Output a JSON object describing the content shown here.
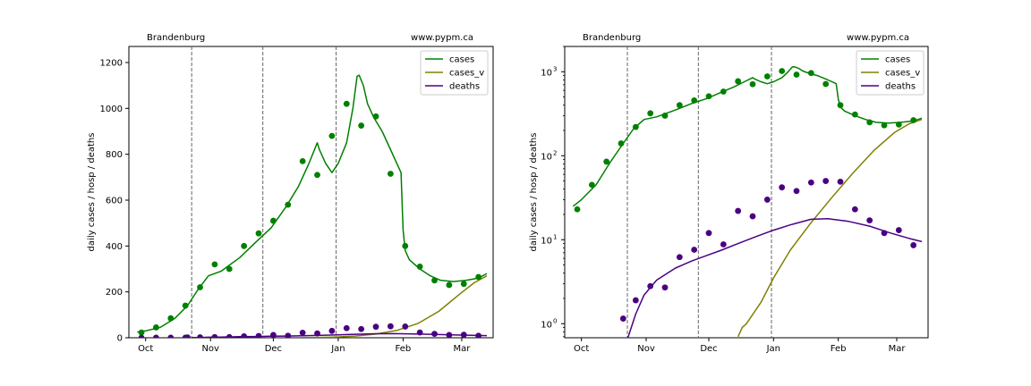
{
  "colors": {
    "cases": "#008000",
    "cases_v": "#808000",
    "deaths": "#4b0082",
    "markers_cases": "#008000",
    "markers_deaths": "#4b0082",
    "vlines": "#666666"
  },
  "chart_data": [
    {
      "type": "line",
      "title_left": "Brandenburg",
      "title_right": "www.pypm.ca",
      "ylabel": "daily cases / hosp / deaths",
      "yscale": "linear",
      "xlim": [
        -8,
        166
      ],
      "ylim": [
        0,
        1270
      ],
      "yticks": [
        0,
        200,
        400,
        600,
        800,
        1000,
        1200
      ],
      "xticks": [
        {
          "x": 0,
          "label": "Oct"
        },
        {
          "x": 31,
          "label": "Nov"
        },
        {
          "x": 61,
          "label": "Dec"
        },
        {
          "x": 92,
          "label": "Jan"
        },
        {
          "x": 123,
          "label": "Feb"
        },
        {
          "x": 151,
          "label": "Mar"
        }
      ],
      "vlines": [
        22,
        56,
        91
      ],
      "legend": "top-right",
      "legend_entries": [
        "cases",
        "cases_v",
        "deaths"
      ],
      "series": [
        {
          "name": "cases",
          "color_key": "cases",
          "points": [
            [
              -4,
              25
            ],
            [
              0,
              30
            ],
            [
              7,
              45
            ],
            [
              14,
              85
            ],
            [
              20,
              140
            ],
            [
              25,
              210
            ],
            [
              30,
              270
            ],
            [
              36,
              290
            ],
            [
              45,
              350
            ],
            [
              53,
              420
            ],
            [
              60,
              480
            ],
            [
              67,
              570
            ],
            [
              73,
              660
            ],
            [
              78,
              760
            ],
            [
              82,
              850
            ],
            [
              83,
              820
            ],
            [
              86,
              760
            ],
            [
              89,
              720
            ],
            [
              92,
              760
            ],
            [
              96,
              850
            ],
            [
              99,
              1000
            ],
            [
              101,
              1140
            ],
            [
              102,
              1145
            ],
            [
              104,
              1100
            ],
            [
              106,
              1020
            ],
            [
              109,
              960
            ],
            [
              113,
              900
            ],
            [
              117,
              820
            ],
            [
              120,
              760
            ],
            [
              122,
              720
            ],
            [
              123,
              470
            ],
            [
              124,
              380
            ],
            [
              126,
              340
            ],
            [
              131,
              300
            ],
            [
              136,
              270
            ],
            [
              141,
              250
            ],
            [
              147,
              245
            ],
            [
              153,
              250
            ],
            [
              159,
              260
            ],
            [
              163,
              280
            ]
          ]
        },
        {
          "name": "cases_v",
          "color_key": "cases_v",
          "points": [
            [
              75,
              0.7
            ],
            [
              77,
              0.9
            ],
            [
              79,
              1.0
            ],
            [
              86,
              1.8
            ],
            [
              92,
              3.5
            ],
            [
              100,
              7.5
            ],
            [
              110,
              16
            ],
            [
              120,
              32
            ],
            [
              130,
              62
            ],
            [
              140,
              115
            ],
            [
              150,
              190
            ],
            [
              157,
              240
            ],
            [
              163,
              270
            ]
          ]
        },
        {
          "name": "deaths",
          "color_key": "deaths",
          "points": [
            [
              22,
              0.65
            ],
            [
              26,
              1.3
            ],
            [
              30,
              2.2
            ],
            [
              36,
              3.3
            ],
            [
              45,
              4.6
            ],
            [
              53,
              5.6
            ],
            [
              60,
              6.5
            ],
            [
              67,
              7.5
            ],
            [
              75,
              9
            ],
            [
              84,
              11
            ],
            [
              92,
              13
            ],
            [
              100,
              15
            ],
            [
              110,
              17.5
            ],
            [
              118,
              17.8
            ],
            [
              128,
              16.5
            ],
            [
              138,
              14.5
            ],
            [
              148,
              12
            ],
            [
              158,
              10.2
            ],
            [
              163,
              9.5
            ]
          ]
        }
      ],
      "scatter_cases": [
        [
          -2,
          23
        ],
        [
          5,
          45
        ],
        [
          12,
          85
        ],
        [
          19,
          140
        ],
        [
          26,
          220
        ],
        [
          33,
          320
        ],
        [
          40,
          300
        ],
        [
          47,
          400
        ],
        [
          54,
          455
        ],
        [
          61,
          510
        ],
        [
          68,
          580
        ],
        [
          75,
          770
        ],
        [
          82,
          710
        ],
        [
          89,
          880
        ],
        [
          96,
          1020
        ],
        [
          103,
          925
        ],
        [
          110,
          965
        ],
        [
          117,
          715
        ],
        [
          124,
          400
        ],
        [
          131,
          310
        ],
        [
          138,
          250
        ],
        [
          145,
          230
        ],
        [
          152,
          235
        ],
        [
          159,
          265
        ]
      ],
      "scatter_deaths": [
        [
          -2,
          0.1
        ],
        [
          5,
          0.2
        ],
        [
          12,
          0.3
        ],
        [
          19,
          0.5
        ],
        [
          20,
          1.15
        ],
        [
          26,
          1.9
        ],
        [
          33,
          2.8
        ],
        [
          40,
          2.7
        ],
        [
          47,
          6.2
        ],
        [
          54,
          7.6
        ],
        [
          61,
          12
        ],
        [
          68,
          8.8
        ],
        [
          75,
          22
        ],
        [
          82,
          19
        ],
        [
          89,
          30
        ],
        [
          96,
          42
        ],
        [
          103,
          38
        ],
        [
          110,
          48
        ],
        [
          117,
          50
        ],
        [
          124,
          49
        ],
        [
          131,
          23
        ],
        [
          138,
          17
        ],
        [
          145,
          12
        ],
        [
          152,
          13
        ],
        [
          159,
          8.6
        ]
      ]
    },
    {
      "type": "line",
      "title_left": "Brandenburg",
      "title_right": "www.pypm.ca",
      "ylabel": "daily cases / hosp / deaths",
      "yscale": "log",
      "xlim": [
        -8,
        166
      ],
      "ylim": [
        0.68,
        2000
      ],
      "yticks": [
        {
          "value": 1,
          "label": "10",
          "exp": "0"
        },
        {
          "value": 10,
          "label": "10",
          "exp": "1"
        },
        {
          "value": 100,
          "label": "10",
          "exp": "2"
        },
        {
          "value": 1000,
          "label": "10",
          "exp": "3"
        }
      ],
      "xticks": [
        {
          "x": 0,
          "label": "Oct"
        },
        {
          "x": 31,
          "label": "Nov"
        },
        {
          "x": 61,
          "label": "Dec"
        },
        {
          "x": 92,
          "label": "Jan"
        },
        {
          "x": 123,
          "label": "Feb"
        },
        {
          "x": 151,
          "label": "Mar"
        }
      ],
      "vlines": [
        22,
        56,
        91
      ],
      "legend": "top-right",
      "legend_entries": [
        "cases",
        "cases_v",
        "deaths"
      ]
    }
  ]
}
